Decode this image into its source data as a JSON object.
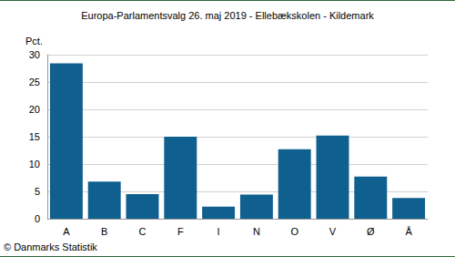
{
  "chart_data": {
    "type": "bar",
    "title": "Europa-Parlamentsvalg 26. maj 2019 - Ellebækskolen - Kildemark",
    "y_label": "Pct.",
    "categories": [
      "A",
      "B",
      "C",
      "F",
      "I",
      "N",
      "O",
      "V",
      "Ø",
      "Å"
    ],
    "values": [
      28.4,
      6.8,
      4.5,
      15.0,
      2.2,
      4.4,
      12.7,
      15.2,
      7.7,
      3.8
    ],
    "color": "#0f5f8f",
    "ylim": [
      0,
      30
    ],
    "yticks": [
      0,
      5,
      10,
      15,
      20,
      25,
      30
    ],
    "grid": true,
    "annotations": [
      "© Danmarks Statistik"
    ]
  }
}
